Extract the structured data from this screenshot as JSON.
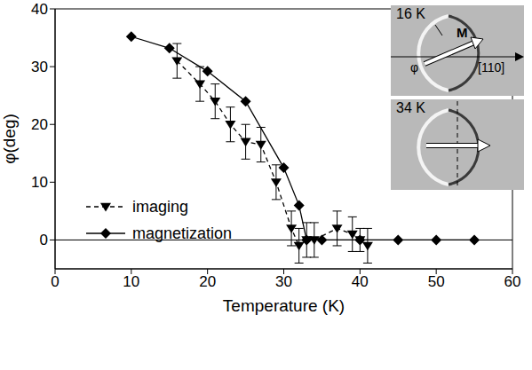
{
  "chart_data": {
    "type": "scatter",
    "xlabel": "Temperature (K)",
    "ylabel": "φ(deg)",
    "xlim": [
      0,
      60
    ],
    "xticks": [
      0,
      10,
      20,
      30,
      40,
      50,
      60
    ],
    "ylim": [
      -5,
      40
    ],
    "yticks": [
      0,
      10,
      20,
      30,
      40
    ],
    "grid": false,
    "legend": "left",
    "annotations": [
      {
        "type": "hline",
        "y": 0
      }
    ],
    "insets": [
      {
        "label": "16 K",
        "texts": [
          "M",
          "φ",
          "[110]"
        ]
      },
      {
        "label": "34 K"
      }
    ],
    "series": [
      {
        "name": "imaging",
        "color": "#000000",
        "marker": "triangle-down",
        "line_style": "dashed",
        "x": [
          16,
          19,
          21,
          23,
          25,
          27,
          29,
          31,
          32,
          33,
          34,
          37,
          39,
          40,
          41
        ],
        "values": [
          31,
          27,
          24,
          20,
          17,
          16.5,
          10,
          2,
          -1,
          0,
          0,
          2,
          1,
          0,
          -1
        ],
        "errors": [
          3,
          3,
          3,
          3,
          3,
          3,
          3,
          3,
          3,
          3,
          3,
          3,
          3,
          2,
          3
        ]
      },
      {
        "name": "magnetization",
        "color": "#000000",
        "marker": "diamond",
        "line_style": "solid",
        "x": [
          10,
          15,
          20,
          25,
          30,
          32,
          33,
          35,
          40,
          45,
          50,
          55
        ],
        "values": [
          35.2,
          33.2,
          29.2,
          24,
          12.5,
          6,
          0,
          0,
          0,
          0,
          0,
          0
        ]
      }
    ]
  }
}
